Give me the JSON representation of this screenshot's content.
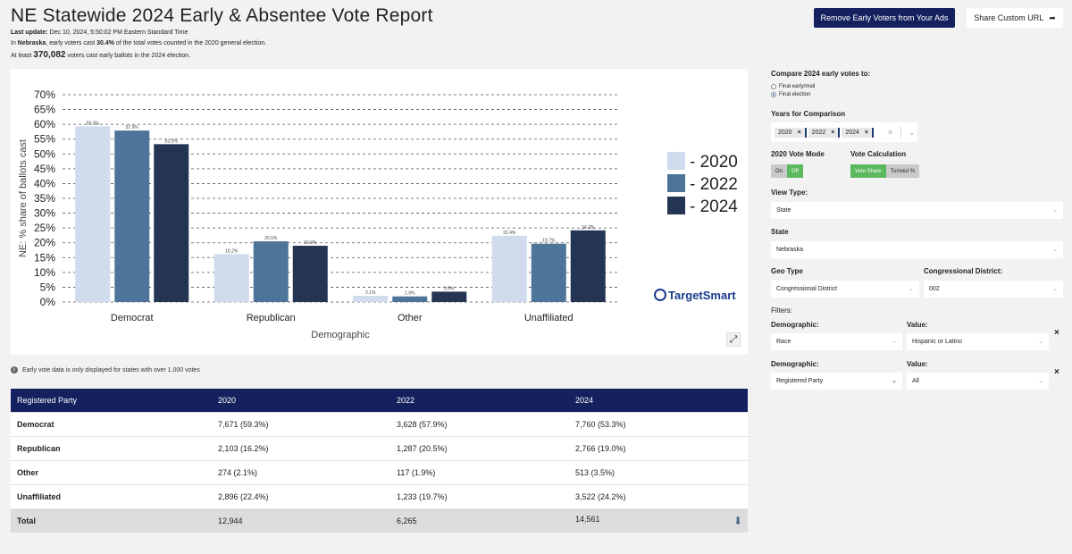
{
  "header": {
    "title": "NE Statewide 2024 Early & Absentee Vote Report",
    "last_update_label": "Last update:",
    "last_update_value": "Dec 10, 2024, 5:50:02 PM Eastern Standard Time",
    "line2_prefix": "In ",
    "line2_state": "Nebraska",
    "line2_mid": ", early voters cast ",
    "line2_pct": "30.4%",
    "line2_suffix": " of the total votes counted in the 2020 general election.",
    "line3_prefix": "At least ",
    "line3_count": "370,082",
    "line3_suffix": " voters cast early ballots in the 2024 election.",
    "remove_button": "Remove Early Voters from Your Ads",
    "share_button": "Share Custom URL"
  },
  "chart_data": {
    "type": "bar",
    "title": "",
    "xlabel": "Demographic",
    "ylabel": "NE: % share of ballots cast",
    "ylim": [
      0,
      70
    ],
    "yticks": [
      0,
      5,
      10,
      15,
      20,
      25,
      30,
      35,
      40,
      45,
      50,
      55,
      60,
      65,
      70
    ],
    "y_tick_suffix": "%",
    "categories": [
      "Democrat",
      "Republican",
      "Other",
      "Unaffiliated"
    ],
    "series": [
      {
        "name": "2020",
        "color": "#d0dced",
        "values": [
          59.3,
          16.2,
          2.1,
          22.4
        ],
        "labels": [
          "59.3%",
          "16.2%",
          "2.1%",
          "22.4%"
        ]
      },
      {
        "name": "2022",
        "color": "#4e7599",
        "values": [
          57.9,
          20.5,
          1.9,
          19.7
        ],
        "labels": [
          "57.9%",
          "20.5%",
          "1.9%",
          "19.7%"
        ]
      },
      {
        "name": "2024",
        "color": "#243553",
        "values": [
          53.3,
          19.0,
          3.5,
          24.2
        ],
        "labels": [
          "53.3%",
          "19.0%",
          "3.5%",
          "24.2%"
        ]
      }
    ],
    "legend_prefix": "- ",
    "legend_position": "right",
    "grid": true,
    "watermark": "TargetSmart"
  },
  "note": "Early vote data is only displayed for states with over 1,000 votes",
  "table": {
    "headers": [
      "Registered Party",
      "2020",
      "2022",
      "2024"
    ],
    "rows": [
      [
        "Democrat",
        "7,671 (59.3%)",
        "3,628 (57.9%)",
        "7,760 (53.3%)"
      ],
      [
        "Republican",
        "2,103 (16.2%)",
        "1,287 (20.5%)",
        "2,766 (19.0%)"
      ],
      [
        "Other",
        "274 (2.1%)",
        "117 (1.9%)",
        "513 (3.5%)"
      ],
      [
        "Unaffiliated",
        "2,896 (22.4%)",
        "1,233 (19.7%)",
        "3,522 (24.2%)"
      ]
    ],
    "total": [
      "Total",
      "12,944",
      "6,265",
      "14,561"
    ]
  },
  "sidebar": {
    "compare_label": "Compare 2024 early votes to:",
    "compare_options": [
      "Final early/mail",
      "Final election"
    ],
    "years_label": "Years for Comparison",
    "years": [
      "2020",
      "2022",
      "2024"
    ],
    "vote_mode_label": "2020 Vote Mode",
    "vote_mode_on": "On",
    "vote_mode_off": "Off",
    "vote_calc_label": "Vote Calculation",
    "vote_calc_share": "Vote Share",
    "vote_calc_turnout": "Turnout %",
    "view_type_label": "View Type:",
    "view_type_value": "State",
    "state_label": "State",
    "state_value": "Nebraska",
    "geo_type_label": "Geo Type",
    "geo_type_value": "Congressional District",
    "cd_label": "Congressional District:",
    "cd_value": "002",
    "filters_label": "Filters:",
    "demographic_label": "Demographic:",
    "value_label": "Value:",
    "filter1_demo": "Race",
    "filter1_value": "Hispanic or Latino",
    "filter2_demo": "Registered Party",
    "filter2_value": "All"
  }
}
